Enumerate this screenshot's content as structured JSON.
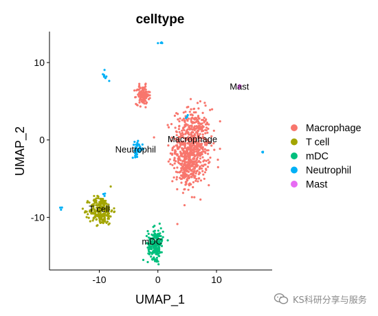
{
  "chart_data": {
    "type": "scatter",
    "title": "celltype",
    "xlabel": "UMAP_1",
    "ylabel": "UMAP_2",
    "xlim": [
      -18.5,
      19.5
    ],
    "ylim": [
      -16.8,
      14
    ],
    "xticks": [
      -10,
      0,
      10
    ],
    "yticks": [
      -10,
      0,
      10
    ],
    "grid": false,
    "legend_position": "right",
    "series": [
      {
        "name": "Macrophage",
        "color": "#F8766D"
      },
      {
        "name": "T cell",
        "color": "#A3A500"
      },
      {
        "name": "mDC",
        "color": "#00BF7D"
      },
      {
        "name": "Neutrophil",
        "color": "#00B0F6"
      },
      {
        "name": "Mast",
        "color": "#E76BF3"
      }
    ],
    "clusters": [
      {
        "series": "Macrophage",
        "cx": 5.8,
        "cy": -0.8,
        "sx": 1.6,
        "sy": 2.4,
        "n": 620
      },
      {
        "series": "Macrophage",
        "cx": 5.0,
        "cy": -3.8,
        "sx": 0.9,
        "sy": 1.2,
        "n": 120
      },
      {
        "series": "Macrophage",
        "cx": -2.6,
        "cy": 5.8,
        "sx": 0.55,
        "sy": 0.6,
        "n": 130
      },
      {
        "series": "T cell",
        "cx": -9.7,
        "cy": -9.1,
        "sx": 1.0,
        "sy": 0.9,
        "n": 240
      },
      {
        "series": "mDC",
        "cx": -0.4,
        "cy": -13.4,
        "sx": 0.65,
        "sy": 1.0,
        "n": 190
      },
      {
        "series": "Neutrophil",
        "cx": -3.5,
        "cy": -1.2,
        "sx": 0.45,
        "sy": 0.45,
        "n": 45
      },
      {
        "series": "Neutrophil",
        "cx": -9.0,
        "cy": 8.2,
        "sx": 0.3,
        "sy": 0.45,
        "n": 8
      },
      {
        "series": "Neutrophil",
        "cx": 0.5,
        "cy": 12.6,
        "sx": 0.25,
        "sy": 0.08,
        "n": 4
      },
      {
        "series": "Neutrophil",
        "cx": 4.9,
        "cy": 3.0,
        "sx": 0.12,
        "sy": 0.15,
        "n": 4
      },
      {
        "series": "Neutrophil",
        "cx": 17.9,
        "cy": -1.5,
        "sx": 0.12,
        "sy": 0.12,
        "n": 3
      },
      {
        "series": "Neutrophil",
        "cx": -16.6,
        "cy": -8.7,
        "sx": 0.12,
        "sy": 0.2,
        "n": 3
      },
      {
        "series": "Neutrophil",
        "cx": -9.1,
        "cy": -7.0,
        "sx": 0.15,
        "sy": 0.15,
        "n": 3
      },
      {
        "series": "Mast",
        "cx": 13.9,
        "cy": 6.8,
        "sx": 0.2,
        "sy": 0.12,
        "n": 6
      }
    ],
    "annotations": [
      {
        "text": "Macrophage",
        "x": 5.9,
        "y": -0.3
      },
      {
        "text": "Mast",
        "x": 13.9,
        "y": 6.5
      },
      {
        "text": "Neutrophil",
        "x": -3.8,
        "y": -1.6
      },
      {
        "text": "T cell",
        "x": -10.0,
        "y": -9.3
      },
      {
        "text": "mDC",
        "x": -1.0,
        "y": -13.5
      }
    ]
  },
  "watermark": {
    "text": "KS科研分享与服务",
    "icon": "wechat-icon"
  }
}
